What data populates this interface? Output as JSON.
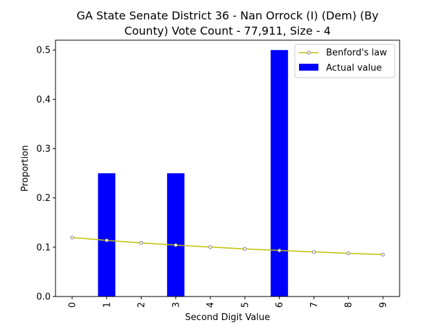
{
  "chart_data": {
    "type": "bar",
    "title_lines": [
      "GA State Senate District 36 - Nan Orrock (I) (Dem) (By",
      "County) Vote Count - 77,911, Size - 4"
    ],
    "xlabel": "Second Digit Value",
    "ylabel": "Proportion",
    "categories": [
      "0",
      "1",
      "2",
      "3",
      "4",
      "5",
      "6",
      "7",
      "8",
      "9"
    ],
    "ylim": [
      0,
      0.52
    ],
    "yticks": [
      "0.0",
      "0.1",
      "0.2",
      "0.3",
      "0.4",
      "0.5"
    ],
    "grid": false,
    "legend_position": "top-right",
    "series": [
      {
        "name": "Benford's law",
        "kind": "line",
        "color": "#bfbf00",
        "marker_edge": "#808080",
        "values": [
          0.1197,
          0.1139,
          0.1088,
          0.1043,
          0.1003,
          0.0967,
          0.0934,
          0.0904,
          0.0876,
          0.085
        ]
      },
      {
        "name": "Actual value",
        "kind": "bar",
        "color": "#0000ff",
        "values": [
          0,
          0.25,
          0,
          0.25,
          0,
          0,
          0.5,
          0,
          0,
          0
        ]
      }
    ]
  }
}
